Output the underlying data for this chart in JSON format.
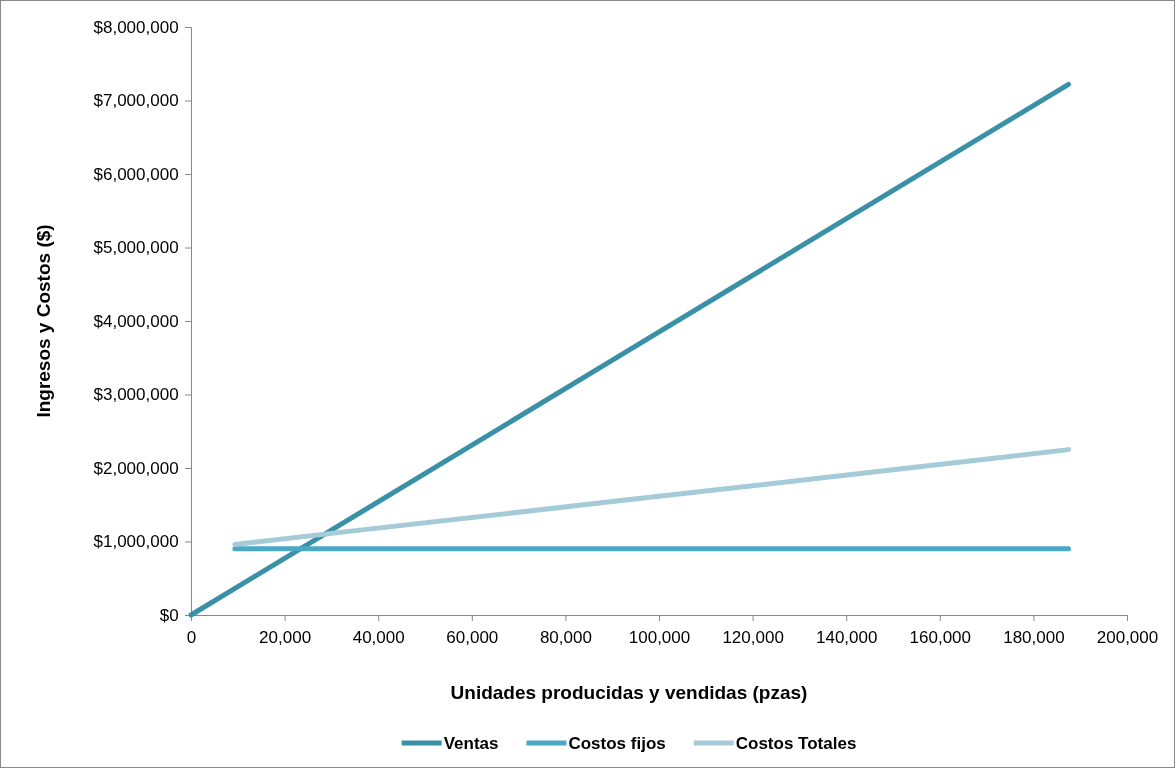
{
  "chart_data": {
    "type": "line",
    "xlabel": "Unidades producidas y vendidas (pzas)",
    "ylabel": "Ingresos y Costos ($)",
    "series": [
      {
        "name": "Ventas",
        "color": "#3a90a6",
        "x": [
          0,
          93750,
          187500
        ],
        "values": [
          0,
          3610000,
          7220000
        ]
      },
      {
        "name": "Costos fijos",
        "color": "#4aa9c4",
        "x": [
          9375,
          93750,
          187500
        ],
        "values": [
          900000,
          900000,
          900000
        ]
      },
      {
        "name": "Costos Totales",
        "color": "#a5cad8",
        "x": [
          9375,
          37500,
          93750,
          150000,
          187500
        ],
        "values": [
          960000,
          1165000,
          1570000,
          1975000,
          2250000
        ]
      }
    ],
    "xlim": [
      0,
      200000
    ],
    "xticks": [
      0,
      {
        "value": 20000,
        "label": "20,000"
      },
      {
        "value": 40000,
        "label": "40,000"
      },
      {
        "value": 60000,
        "label": "60,000"
      },
      {
        "value": 80000,
        "label": "80,000"
      },
      {
        "value": 100000,
        "label": "100,000"
      },
      {
        "value": 120000,
        "label": "120,000"
      },
      {
        "value": 140000,
        "label": "140,000"
      },
      {
        "value": 160000,
        "label": "160,000"
      },
      {
        "value": 180000,
        "label": "180,000"
      },
      {
        "value": 200000,
        "label": "200,000"
      }
    ],
    "ylim": [
      0,
      8000000
    ],
    "yticks": [
      {
        "value": 0,
        "label": "$0"
      },
      {
        "value": 1000000,
        "label": "$1,000,000"
      },
      {
        "value": 2000000,
        "label": "$2,000,000"
      },
      {
        "value": 3000000,
        "label": "$3,000,000"
      },
      {
        "value": 4000000,
        "label": "$4,000,000"
      },
      {
        "value": 5000000,
        "label": "$5,000,000"
      },
      {
        "value": 6000000,
        "label": "$6,000,000"
      },
      {
        "value": 7000000,
        "label": "$7,000,000"
      },
      {
        "value": 8000000,
        "label": "$8,000,000"
      }
    ],
    "grid": false,
    "legend": "bottom",
    "marker": "none",
    "line_style": "solid"
  }
}
